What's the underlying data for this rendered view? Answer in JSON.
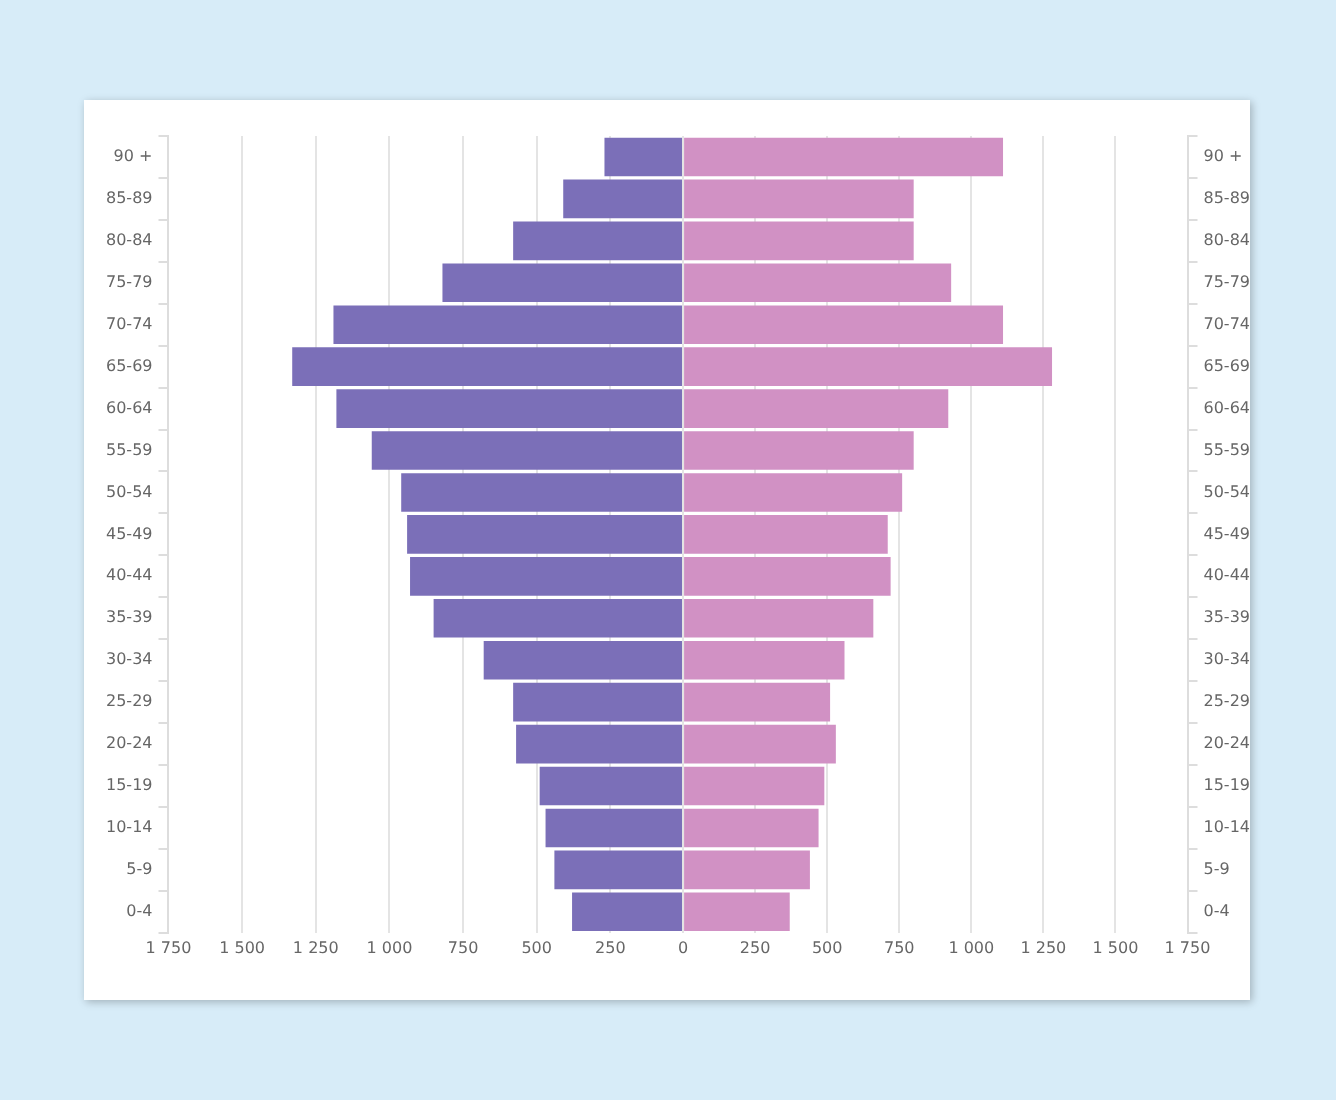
{
  "chart_data": [
    {
      "type": "bar",
      "orientation": "horizontal",
      "categories": [
        "90 +",
        "85-89",
        "80-84",
        "75-79",
        "70-74",
        "65-69",
        "60-64",
        "55-59",
        "50-54",
        "45-49",
        "40-44",
        "35-39",
        "30-34",
        "25-29",
        "20-24",
        "15-19",
        "10-14",
        "5-9",
        "0-4"
      ],
      "values": [
        270,
        410,
        580,
        820,
        1190,
        1330,
        1180,
        1060,
        960,
        940,
        930,
        850,
        680,
        580,
        570,
        490,
        470,
        440,
        380
      ],
      "color": "#7b6fb8",
      "grid": "x",
      "xlim": [
        1750,
        0
      ],
      "xticks": [
        {
          "value": 1750,
          "label": "1 750"
        },
        {
          "value": 1500,
          "label": "1 500"
        },
        {
          "value": 1250,
          "label": "1 250"
        },
        {
          "value": 1000,
          "label": "1 000"
        },
        750,
        500,
        250
      ]
    },
    {
      "type": "bar",
      "orientation": "horizontal",
      "categories": [
        "90 +",
        "85-89",
        "80-84",
        "75-79",
        "70-74",
        "65-69",
        "60-64",
        "55-59",
        "50-54",
        "45-49",
        "40-44",
        "35-39",
        "30-34",
        "25-29",
        "20-24",
        "15-19",
        "10-14",
        "5-9",
        "0-4"
      ],
      "values": [
        1110,
        800,
        800,
        930,
        1110,
        1280,
        920,
        800,
        760,
        710,
        720,
        660,
        560,
        510,
        530,
        490,
        470,
        440,
        370
      ],
      "color": "#d191c4",
      "grid": "x",
      "xlim": [
        0,
        1750
      ],
      "xticks": [
        0,
        250,
        500,
        750,
        {
          "value": 1000,
          "label": "1 000"
        },
        {
          "value": 1250,
          "label": "1 250"
        },
        {
          "value": 1500,
          "label": "1 500"
        },
        {
          "value": 1750,
          "label": "1 750"
        }
      ]
    }
  ]
}
